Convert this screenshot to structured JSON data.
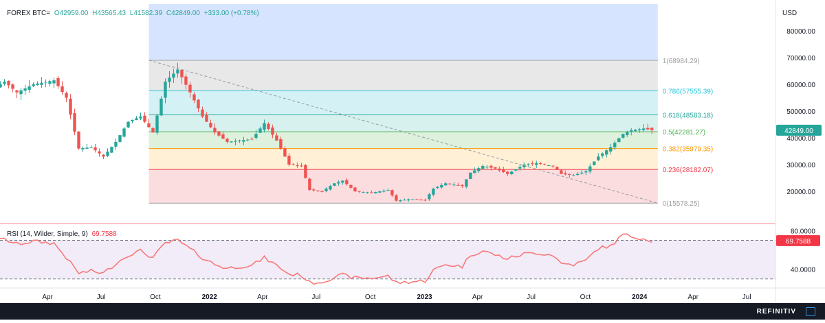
{
  "header": {
    "symbol": "FOREX BTC=",
    "open": "O42959.00",
    "high": "H43565.43",
    "low": "L41582.39",
    "close": "C42849.00",
    "change": "+333.00 (+0.78%)"
  },
  "currency_label": "USD",
  "last_price_badge": "42849.00",
  "rsi": {
    "label": "RSI (14, Wilder, Simple, 9)",
    "value": "69.7588",
    "ticks": [
      {
        "label": "80.0000",
        "value": 80
      },
      {
        "label": "40.0000",
        "value": 40
      }
    ],
    "upper": 70,
    "lower": 30,
    "range": [
      22,
      86
    ]
  },
  "brand": "REFINITIV",
  "colors": {
    "up": "#26a69a",
    "down": "#ef5350",
    "rsi": "#f77a7a",
    "bg": "#ffffff",
    "axis_bg": "#161a25"
  },
  "chart_data": {
    "type": "candlestick",
    "ylim": [
      10000,
      90000
    ],
    "y_ticks": [
      {
        "label": "80000.00",
        "value": 80000
      },
      {
        "label": "70000.00",
        "value": 70000
      },
      {
        "label": "60000.00",
        "value": 60000
      },
      {
        "label": "50000.00",
        "value": 50000
      },
      {
        "label": "40000.00",
        "value": 40000
      },
      {
        "label": "30000.00",
        "value": 30000
      },
      {
        "label": "20000.00",
        "value": 20000
      }
    ],
    "x_ticks": [
      {
        "label": "Apr",
        "date": "2021-04-01",
        "bold": false
      },
      {
        "label": "Jul",
        "date": "2021-07-01",
        "bold": false
      },
      {
        "label": "Oct",
        "date": "2021-10-01",
        "bold": false
      },
      {
        "label": "2022",
        "date": "2022-01-01",
        "bold": true
      },
      {
        "label": "Apr",
        "date": "2022-04-01",
        "bold": false
      },
      {
        "label": "Jul",
        "date": "2022-07-01",
        "bold": false
      },
      {
        "label": "Oct",
        "date": "2022-10-01",
        "bold": false
      },
      {
        "label": "2023",
        "date": "2023-01-01",
        "bold": true
      },
      {
        "label": "Apr",
        "date": "2023-04-01",
        "bold": false
      },
      {
        "label": "Jul",
        "date": "2023-07-01",
        "bold": false
      },
      {
        "label": "Oct",
        "date": "2023-10-01",
        "bold": false
      },
      {
        "label": "2024",
        "date": "2024-01-01",
        "bold": true
      },
      {
        "label": "Apr",
        "date": "2024-04-01",
        "bold": false
      },
      {
        "label": "Jul",
        "date": "2024-07-01",
        "bold": false
      }
    ],
    "fibonacci": {
      "start_date": "2021-09-20",
      "end_date": "2024-02-01",
      "top_bg_color": "#d6e4ff",
      "levels": [
        {
          "ratio": "1",
          "value": 68984.29,
          "label": "1(68984.29)",
          "color": "#9e9e9e",
          "fill": "#e8e8e8"
        },
        {
          "ratio": "0.786",
          "value": 57555.39,
          "label": "0.786(57555.39)",
          "color": "#26c6da",
          "fill": "#d4f2f5"
        },
        {
          "ratio": "0.618",
          "value": 48583.18,
          "label": "0.618(48583.18)",
          "color": "#26a69a",
          "fill": "#d7f1ee"
        },
        {
          "ratio": "0.5",
          "value": 42281.27,
          "label": "0.5(42281.27)",
          "color": "#4caf50",
          "fill": "#ddf1dc"
        },
        {
          "ratio": "0.382",
          "value": 35979.35,
          "label": "0.382(35979.35)",
          "color": "#ff9800",
          "fill": "#fff0d6"
        },
        {
          "ratio": "0.236",
          "value": 28182.07,
          "label": "0.236(28182.07)",
          "color": "#f23645",
          "fill": "#fbdde0"
        },
        {
          "ratio": "0",
          "value": 15578.25,
          "label": "0(15578.25)",
          "color": "#9e9e9e",
          "fill": ""
        }
      ]
    },
    "trendline": {
      "from": {
        "date": "2021-09-20",
        "value": 69000
      },
      "to": {
        "date": "2024-02-01",
        "value": 15578
      }
    },
    "anchors": [
      {
        "date": "2021-01-04",
        "price": 59000,
        "rsi": 70
      },
      {
        "date": "2021-01-18",
        "price": 61000,
        "rsi": 71
      },
      {
        "date": "2021-02-08",
        "price": 57000,
        "rsi": 66
      },
      {
        "date": "2021-03-08",
        "price": 60000,
        "rsi": 69
      },
      {
        "date": "2021-04-12",
        "price": 61500,
        "rsi": 67
      },
      {
        "date": "2021-05-03",
        "price": 55000,
        "rsi": 52
      },
      {
        "date": "2021-05-24",
        "price": 36000,
        "rsi": 36
      },
      {
        "date": "2021-06-14",
        "price": 36500,
        "rsi": 38
      },
      {
        "date": "2021-07-05",
        "price": 33000,
        "rsi": 36
      },
      {
        "date": "2021-07-26",
        "price": 38500,
        "rsi": 46
      },
      {
        "date": "2021-08-16",
        "price": 46000,
        "rsi": 55
      },
      {
        "date": "2021-09-06",
        "price": 48000,
        "rsi": 59
      },
      {
        "date": "2021-09-27",
        "price": 42000,
        "rsi": 52
      },
      {
        "date": "2021-10-18",
        "price": 61000,
        "rsi": 67
      },
      {
        "date": "2021-11-08",
        "price": 65500,
        "rsi": 70
      },
      {
        "date": "2021-11-29",
        "price": 57000,
        "rsi": 61
      },
      {
        "date": "2021-12-20",
        "price": 48000,
        "rsi": 52
      },
      {
        "date": "2022-01-10",
        "price": 42000,
        "rsi": 45
      },
      {
        "date": "2022-01-31",
        "price": 38500,
        "rsi": 41
      },
      {
        "date": "2022-02-21",
        "price": 39000,
        "rsi": 43
      },
      {
        "date": "2022-03-14",
        "price": 39500,
        "rsi": 44
      },
      {
        "date": "2022-04-04",
        "price": 45500,
        "rsi": 52
      },
      {
        "date": "2022-04-25",
        "price": 39000,
        "rsi": 44
      },
      {
        "date": "2022-05-16",
        "price": 30000,
        "rsi": 35
      },
      {
        "date": "2022-06-06",
        "price": 29500,
        "rsi": 34
      },
      {
        "date": "2022-06-20",
        "price": 20500,
        "rsi": 26
      },
      {
        "date": "2022-07-11",
        "price": 20000,
        "rsi": 27
      },
      {
        "date": "2022-08-01",
        "price": 23000,
        "rsi": 32
      },
      {
        "date": "2022-08-15",
        "price": 24000,
        "rsi": 34
      },
      {
        "date": "2022-09-05",
        "price": 20000,
        "rsi": 31
      },
      {
        "date": "2022-10-03",
        "price": 19500,
        "rsi": 31
      },
      {
        "date": "2022-10-31",
        "price": 20500,
        "rsi": 33
      },
      {
        "date": "2022-11-14",
        "price": 16500,
        "rsi": 26
      },
      {
        "date": "2022-12-05",
        "price": 17000,
        "rsi": 27
      },
      {
        "date": "2023-01-02",
        "price": 16800,
        "rsi": 28
      },
      {
        "date": "2023-01-16",
        "price": 21000,
        "rsi": 39
      },
      {
        "date": "2023-02-06",
        "price": 23000,
        "rsi": 45
      },
      {
        "date": "2023-03-06",
        "price": 22000,
        "rsi": 43
      },
      {
        "date": "2023-03-20",
        "price": 27000,
        "rsi": 55
      },
      {
        "date": "2023-04-10",
        "price": 29500,
        "rsi": 59
      },
      {
        "date": "2023-05-01",
        "price": 28500,
        "rsi": 55
      },
      {
        "date": "2023-05-22",
        "price": 26500,
        "rsi": 51
      },
      {
        "date": "2023-06-19",
        "price": 30000,
        "rsi": 56
      },
      {
        "date": "2023-07-10",
        "price": 30500,
        "rsi": 57
      },
      {
        "date": "2023-08-07",
        "price": 29500,
        "rsi": 55
      },
      {
        "date": "2023-08-21",
        "price": 26500,
        "rsi": 46
      },
      {
        "date": "2023-09-11",
        "price": 26000,
        "rsi": 45
      },
      {
        "date": "2023-10-02",
        "price": 27500,
        "rsi": 49
      },
      {
        "date": "2023-10-23",
        "price": 33000,
        "rsi": 62
      },
      {
        "date": "2023-11-13",
        "price": 36500,
        "rsi": 64
      },
      {
        "date": "2023-12-04",
        "price": 41500,
        "rsi": 76
      },
      {
        "date": "2023-12-18",
        "price": 42800,
        "rsi": 74
      },
      {
        "date": "2024-01-08",
        "price": 43500,
        "rsi": 72
      },
      {
        "date": "2024-01-22",
        "price": 42849,
        "rsi": 69.76
      }
    ]
  }
}
